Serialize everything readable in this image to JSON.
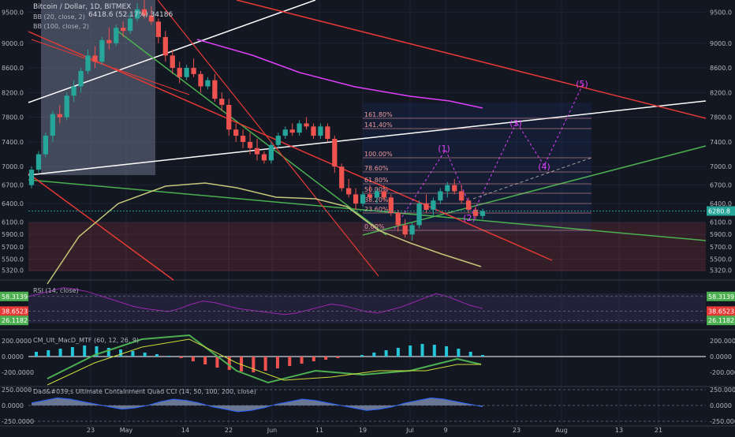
{
  "colors": {
    "bg": "#131722",
    "grid": "#1f2333",
    "up": "#26a69a",
    "down": "#ef5350",
    "axis_text": "#b2b5be",
    "sep": "#2a2e39",
    "price_tag": "#26a69a",
    "rsi_line": "#9c27b0",
    "macd_up": "#26c6da",
    "macd_down": "#ef5350",
    "cci_fill": "#b3c7ee",
    "wave": "#e040fb",
    "fib": "#ef9a9a"
  },
  "main": {
    "title": "Bitcoin / Dollar, 1D, BITMEX",
    "quote": "6418.6 (52.17%) 34186",
    "bb20": "BB (20, close, 2)",
    "bb100": "BB (100, close, 2)",
    "last_price": "6280.8"
  },
  "chart_data": [
    {
      "type": "candlestick",
      "title": "Bitcoin / Dollar, 1D, BITMEX",
      "xlabel": "",
      "ylabel": "",
      "ylim": [
        5200,
        9700
      ],
      "x_ticks": [
        "23",
        "May",
        "14",
        "22",
        "Jun",
        "11",
        "19",
        "Jul",
        "9",
        "23",
        "Aug",
        "13",
        "21"
      ],
      "y_ticks": [
        "9500.0",
        "9000.0",
        "8600.0",
        "8200.0",
        "7800.0",
        "7400.0",
        "7000.0",
        "6700.0",
        "6400.0",
        "6100.0",
        "5900.0",
        "5700.0",
        "5500.0",
        "5320.0"
      ],
      "candles": [
        [
          6700,
          7000,
          6650,
          6950
        ],
        [
          6950,
          7250,
          6900,
          7200
        ],
        [
          7200,
          7550,
          7150,
          7500
        ],
        [
          7500,
          7900,
          7400,
          7850
        ],
        [
          7850,
          8000,
          7700,
          7800
        ],
        [
          7800,
          8200,
          7750,
          8150
        ],
        [
          8150,
          8400,
          8050,
          8300
        ],
        [
          8300,
          8600,
          8200,
          8550
        ],
        [
          8550,
          8900,
          8500,
          8800
        ],
        [
          8800,
          8950,
          8600,
          8700
        ],
        [
          8700,
          9100,
          8650,
          9050
        ],
        [
          9050,
          9250,
          8900,
          9000
        ],
        [
          9000,
          9300,
          8950,
          9250
        ],
        [
          9250,
          9350,
          9100,
          9200
        ],
        [
          9200,
          9500,
          9150,
          9400
        ],
        [
          9400,
          9650,
          9350,
          9550
        ],
        [
          9550,
          9700,
          9400,
          9450
        ],
        [
          9450,
          9600,
          9300,
          9350
        ],
        [
          9350,
          9400,
          9000,
          9100
        ],
        [
          9100,
          9200,
          8700,
          8800
        ],
        [
          8800,
          8900,
          8500,
          8600
        ],
        [
          8600,
          8700,
          8350,
          8450
        ],
        [
          8450,
          8650,
          8400,
          8600
        ],
        [
          8600,
          8750,
          8450,
          8500
        ],
        [
          8500,
          8550,
          8200,
          8300
        ],
        [
          8300,
          8450,
          8250,
          8400
        ],
        [
          8400,
          8500,
          8050,
          8100
        ],
        [
          8100,
          8200,
          7900,
          8000
        ],
        [
          8000,
          8100,
          7500,
          7600
        ],
        [
          7600,
          7700,
          7400,
          7500
        ],
        [
          7500,
          7600,
          7300,
          7400
        ],
        [
          7400,
          7550,
          7200,
          7300
        ],
        [
          7300,
          7450,
          7100,
          7200
        ],
        [
          7200,
          7250,
          7050,
          7100
        ],
        [
          7100,
          7400,
          7050,
          7350
        ],
        [
          7350,
          7550,
          7300,
          7500
        ],
        [
          7500,
          7650,
          7450,
          7600
        ],
        [
          7600,
          7700,
          7500,
          7550
        ],
        [
          7550,
          7750,
          7500,
          7700
        ],
        [
          7700,
          7800,
          7600,
          7650
        ],
        [
          7650,
          7700,
          7450,
          7500
        ],
        [
          7500,
          7700,
          7450,
          7650
        ],
        [
          7650,
          7700,
          7400,
          7450
        ],
        [
          7450,
          7500,
          6900,
          7000
        ],
        [
          7000,
          7050,
          6600,
          6650
        ],
        [
          6650,
          6800,
          6500,
          6550
        ],
        [
          6550,
          6650,
          6300,
          6400
        ],
        [
          6400,
          6600,
          6350,
          6550
        ],
        [
          6550,
          6700,
          6450,
          6500
        ],
        [
          6500,
          6650,
          6400,
          6600
        ],
        [
          6600,
          6700,
          6450,
          6500
        ],
        [
          6500,
          6550,
          6200,
          6250
        ],
        [
          6250,
          6300,
          5950,
          6050
        ],
        [
          6050,
          6150,
          5850,
          5900
        ],
        [
          5900,
          6100,
          5800,
          6050
        ],
        [
          6050,
          6450,
          6000,
          6400
        ],
        [
          6400,
          6550,
          6250,
          6300
        ],
        [
          6300,
          6500,
          6200,
          6450
        ],
        [
          6450,
          6650,
          6400,
          6600
        ],
        [
          6600,
          6750,
          6500,
          6700
        ],
        [
          6700,
          6800,
          6550,
          6600
        ],
        [
          6600,
          6700,
          6400,
          6450
        ],
        [
          6450,
          6500,
          6250,
          6300
        ],
        [
          6300,
          6350,
          6150,
          6200
        ],
        [
          6200,
          6320,
          6150,
          6280
        ]
      ],
      "annotations": [
        "(1)",
        "(2)",
        "(3)",
        "(4)",
        "(5)"
      ],
      "fib_levels": [
        "161.80%",
        "141.40%",
        "100.00%",
        "78.60%",
        "61.80%",
        "50.00%",
        "38.20%",
        "23.60%",
        "0.00%"
      ],
      "grid": true
    },
    {
      "type": "line",
      "title": "RSI (14, close)",
      "values": [
        58,
        62,
        66,
        70,
        68,
        65,
        60,
        55,
        50,
        45,
        42,
        40,
        38,
        42,
        48,
        52,
        50,
        46,
        42,
        40,
        38,
        36,
        34,
        36,
        40,
        44,
        48,
        46,
        42,
        38,
        36,
        40,
        44,
        50,
        56,
        62,
        58,
        52,
        46,
        42
      ],
      "y_ticks": [
        "58.3139",
        "38.6523",
        "26.1182"
      ]
    },
    {
      "type": "bar",
      "title": "CM_Ult_MacD_MTF (60, 12, 26, 9)",
      "values": [
        60,
        80,
        100,
        120,
        140,
        130,
        110,
        90,
        70,
        50,
        30,
        10,
        -20,
        -60,
        -100,
        -140,
        -170,
        -190,
        -200,
        -180,
        -150,
        -120,
        -90,
        -60,
        -40,
        -20,
        0,
        20,
        50,
        80,
        110,
        140,
        160,
        150,
        130,
        100,
        60,
        20
      ],
      "y_ticks": [
        "200.0000",
        "0.0000",
        "-200.0000"
      ]
    },
    {
      "type": "area",
      "title": "Dad&#039;s Ultimate Containment Quad CCI (14, 50, 100, 200, close)",
      "values": [
        40,
        80,
        120,
        100,
        60,
        20,
        -20,
        -60,
        -40,
        0,
        60,
        100,
        80,
        40,
        -20,
        -60,
        -100,
        -80,
        -40,
        20,
        60,
        100,
        80,
        40,
        0,
        -40,
        -80,
        -60,
        -20,
        40,
        80,
        120,
        100,
        60,
        20,
        -20
      ],
      "y_ticks": [
        "250.0000",
        "0.0000",
        "-250.0000"
      ]
    }
  ]
}
